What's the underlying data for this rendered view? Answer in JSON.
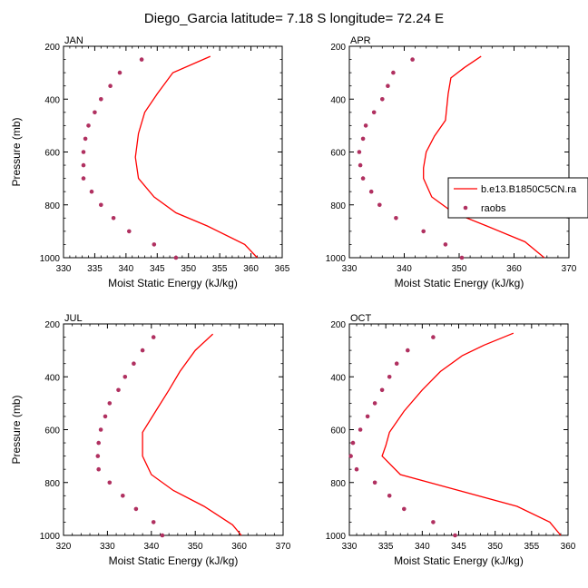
{
  "figure_title": "Diego_Garcia  latitude= 7.18 S longitude= 72.24 E",
  "colors": {
    "model": "#ff0000",
    "obs": "#b03060",
    "axis": "#000000"
  },
  "legend": {
    "model_label": "b.e13.B1850C5CN.ra",
    "obs_label": "raobs",
    "placement": "right of APR panel"
  },
  "chart_data": [
    {
      "type": "line",
      "title": "JAN",
      "xlabel": "Moist Static Energy (kJ/kg)",
      "ylabel": "Pressure (mb)",
      "xlim": [
        330,
        365
      ],
      "ylim": [
        1000,
        200
      ],
      "xticks": [
        "330",
        "335",
        "340",
        "345",
        "350",
        "355",
        "360",
        "365"
      ],
      "yticks": [
        "200",
        "400",
        "600",
        "800",
        "1000"
      ],
      "series": [
        {
          "name": "b.e13.B1850C5CN.ra",
          "kind": "line",
          "x": [
            353.5,
            347.5,
            345.0,
            343.0,
            342.0,
            341.5,
            342.0,
            344.5,
            348.0,
            353.0,
            359.0,
            361.0
          ],
          "y": [
            238,
            300,
            380,
            450,
            530,
            620,
            700,
            770,
            830,
            880,
            950,
            1000
          ]
        },
        {
          "name": "raobs",
          "kind": "scatter",
          "x": [
            342.5,
            339.0,
            337.5,
            336.0,
            335.0,
            334.0,
            333.5,
            333.2,
            333.2,
            333.2,
            334.5,
            336.0,
            338.0,
            340.5,
            344.5,
            348.0
          ],
          "y": [
            250,
            300,
            350,
            400,
            450,
            500,
            550,
            600,
            650,
            700,
            750,
            800,
            850,
            900,
            950,
            1000
          ]
        }
      ]
    },
    {
      "type": "line",
      "title": "APR",
      "xlabel": "Moist Static Energy (kJ/kg)",
      "ylabel": "",
      "xlim": [
        330,
        370
      ],
      "ylim": [
        1000,
        200
      ],
      "xticks": [
        "330",
        "340",
        "350",
        "360",
        "370"
      ],
      "yticks": [
        "200",
        "400",
        "600",
        "800",
        "1000"
      ],
      "series": [
        {
          "name": "b.e13.B1850C5CN.ra",
          "kind": "line",
          "x": [
            354.0,
            351.0,
            348.5,
            348.0,
            347.5,
            345.5,
            344.0,
            343.5,
            343.5,
            345.0,
            349.0,
            355.0,
            362.0,
            365.5
          ],
          "y": [
            238,
            280,
            320,
            380,
            480,
            540,
            600,
            660,
            700,
            770,
            830,
            880,
            940,
            1000
          ]
        },
        {
          "name": "raobs",
          "kind": "scatter",
          "x": [
            341.5,
            338.0,
            337.0,
            336.0,
            334.5,
            333.0,
            332.5,
            331.8,
            332.0,
            332.5,
            334.0,
            335.5,
            338.5,
            343.5,
            347.5,
            350.5
          ],
          "y": [
            250,
            300,
            350,
            400,
            450,
            500,
            550,
            600,
            650,
            700,
            750,
            800,
            850,
            900,
            950,
            1000
          ]
        }
      ]
    },
    {
      "type": "line",
      "title": "JUL",
      "xlabel": "Moist Static Energy (kJ/kg)",
      "ylabel": "Pressure (mb)",
      "xlim": [
        320,
        370
      ],
      "ylim": [
        1000,
        200
      ],
      "xticks": [
        "320",
        "330",
        "340",
        "350",
        "360",
        "370"
      ],
      "yticks": [
        "200",
        "400",
        "600",
        "800",
        "1000"
      ],
      "series": [
        {
          "name": "b.e13.B1850C5CN.ra",
          "kind": "line",
          "x": [
            354.0,
            350.0,
            346.5,
            344.0,
            341.0,
            338.0,
            338.0,
            338.0,
            340.0,
            345.0,
            352.0,
            358.5,
            360.5
          ],
          "y": [
            238,
            300,
            380,
            450,
            530,
            610,
            690,
            700,
            770,
            830,
            890,
            960,
            1000
          ]
        },
        {
          "name": "raobs",
          "kind": "scatter",
          "x": [
            340.5,
            338.0,
            336.0,
            334.0,
            332.5,
            330.5,
            329.5,
            328.5,
            328.0,
            327.8,
            328.0,
            330.5,
            333.5,
            336.5,
            340.5,
            342.5
          ],
          "y": [
            250,
            300,
            350,
            400,
            450,
            500,
            550,
            600,
            650,
            700,
            750,
            800,
            850,
            900,
            950,
            1000
          ]
        }
      ]
    },
    {
      "type": "line",
      "title": "OCT",
      "xlabel": "Moist Static Energy (kJ/kg)",
      "ylabel": "",
      "xlim": [
        330,
        360
      ],
      "ylim": [
        1000,
        200
      ],
      "xticks": [
        "330",
        "335",
        "340",
        "345",
        "350",
        "355",
        "360"
      ],
      "yticks": [
        "200",
        "400",
        "600",
        "800",
        "1000"
      ],
      "series": [
        {
          "name": "b.e13.B1850C5CN.ra",
          "kind": "line",
          "x": [
            352.5,
            348.5,
            345.5,
            342.5,
            340.0,
            337.5,
            335.5,
            335.0,
            334.5,
            337.0,
            345.0,
            353.0,
            357.5,
            359.0
          ],
          "y": [
            235,
            280,
            320,
            380,
            450,
            530,
            610,
            660,
            700,
            770,
            830,
            890,
            950,
            1000
          ]
        },
        {
          "name": "raobs",
          "kind": "scatter",
          "x": [
            341.5,
            338.0,
            336.5,
            335.5,
            334.5,
            333.5,
            332.5,
            331.5,
            330.5,
            330.2,
            331.0,
            333.5,
            335.5,
            337.5,
            341.5,
            344.5
          ],
          "y": [
            250,
            300,
            350,
            400,
            450,
            500,
            550,
            600,
            650,
            700,
            750,
            800,
            850,
            900,
            950,
            1000
          ]
        }
      ]
    }
  ]
}
